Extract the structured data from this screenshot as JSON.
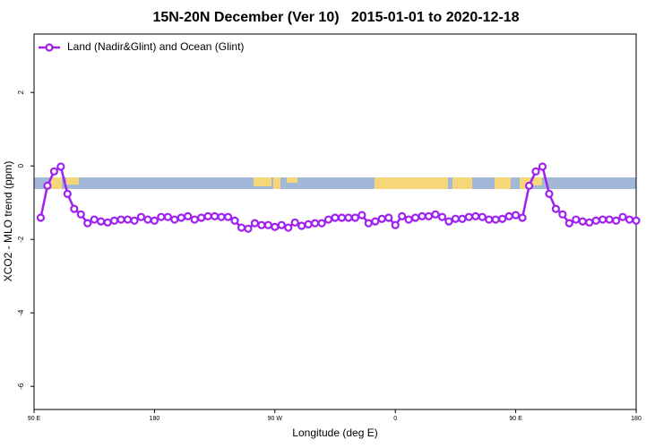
{
  "chart_data": {
    "type": "line",
    "title": "15N-20N December (Ver 10)   2015-01-01 to 2020-12-18",
    "x_label": "Longitude (deg E)",
    "y_label": "XCO2 - MLO trend (ppm)",
    "xlim": [
      90,
      540
    ],
    "ylim": [
      -6.63,
      3.59
    ],
    "xticks": [
      {
        "value": 90,
        "label": "90 E"
      },
      180,
      {
        "value": 270,
        "label": "90 W"
      },
      {
        "value": 360,
        "label": "0"
      },
      {
        "value": 450,
        "label": "90 E"
      },
      {
        "value": 540,
        "label": "180"
      }
    ],
    "yticks": [
      -6,
      -4,
      -2,
      0,
      2
    ],
    "legend": "top-left",
    "x": [
      95,
      100,
      105,
      110,
      115,
      120,
      125,
      130,
      135,
      140,
      145,
      150,
      155,
      160,
      165,
      170,
      175,
      180,
      185,
      190,
      195,
      200,
      205,
      210,
      215,
      220,
      225,
      230,
      235,
      240,
      245,
      250,
      255,
      260,
      265,
      270,
      275,
      280,
      285,
      290,
      295,
      300,
      305,
      310,
      315,
      320,
      325,
      330,
      335,
      340,
      345,
      350,
      355,
      360,
      365,
      370,
      375,
      380,
      385,
      390,
      395,
      400,
      405,
      410,
      415,
      420,
      425,
      430,
      435,
      440,
      445,
      450,
      455,
      460,
      465,
      470,
      475,
      480,
      485,
      490,
      495,
      500,
      505,
      510,
      515,
      520,
      525,
      530,
      535,
      540
    ],
    "series": [
      {
        "name": "Land (Nadir&Glint) and Ocean (Glint)",
        "color": "#a020f0",
        "values": [
          -1.41,
          -0.54,
          -0.15,
          -0.02,
          -0.76,
          -1.17,
          -1.32,
          -1.56,
          -1.46,
          -1.51,
          -1.54,
          -1.49,
          -1.46,
          -1.46,
          -1.49,
          -1.39,
          -1.46,
          -1.49,
          -1.39,
          -1.39,
          -1.46,
          -1.41,
          -1.37,
          -1.46,
          -1.41,
          -1.37,
          -1.37,
          -1.39,
          -1.39,
          -1.49,
          -1.68,
          -1.71,
          -1.56,
          -1.61,
          -1.61,
          -1.66,
          -1.61,
          -1.68,
          -1.54,
          -1.63,
          -1.59,
          -1.56,
          -1.56,
          -1.46,
          -1.41,
          -1.41,
          -1.41,
          -1.41,
          -1.34,
          -1.56,
          -1.51,
          -1.44,
          -1.41,
          -1.61,
          -1.37,
          -1.46,
          -1.41,
          -1.37,
          -1.37,
          -1.32,
          -1.39,
          -1.51,
          -1.44,
          -1.44,
          -1.39,
          -1.37,
          -1.39,
          -1.46,
          -1.46,
          -1.44,
          -1.37,
          -1.34,
          -1.41,
          -0.54,
          -0.15,
          -0.02,
          -0.76,
          -1.17,
          -1.32,
          -1.56,
          -1.46,
          -1.51,
          -1.54,
          -1.49,
          -1.46,
          -1.46,
          -1.49,
          -1.39,
          -1.46,
          -1.49
        ]
      }
    ]
  }
}
